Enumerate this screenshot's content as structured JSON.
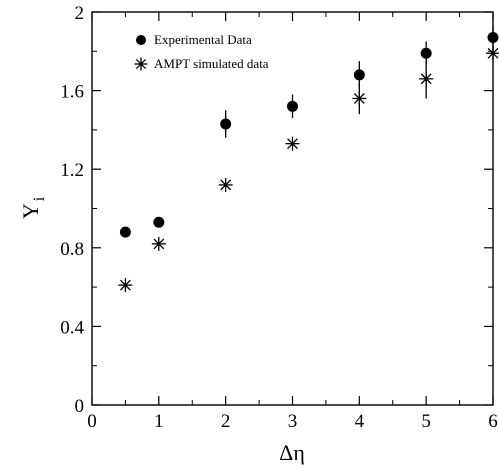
{
  "chart_data": {
    "type": "scatter",
    "xlabel": "Δη",
    "ylabel": "Y",
    "ylabel_subscript": "i",
    "xlim": [
      0,
      6
    ],
    "ylim": [
      0,
      2
    ],
    "xticks": [
      "0",
      "1",
      "2",
      "3",
      "4",
      "5",
      "6"
    ],
    "yticks": [
      "0",
      "0.4",
      "0.8",
      "1.2",
      "1.6",
      "2"
    ],
    "grid": false,
    "legend_position": "top-left",
    "series": [
      {
        "name": "Experimental Data",
        "marker": "filled-circle",
        "points": [
          {
            "x": 0.5,
            "y": 0.88,
            "err": 0.0
          },
          {
            "x": 1.0,
            "y": 0.93,
            "err": 0.02
          },
          {
            "x": 2.0,
            "y": 1.43,
            "err": 0.07
          },
          {
            "x": 3.0,
            "y": 1.52,
            "err": 0.06
          },
          {
            "x": 4.0,
            "y": 1.68,
            "err": 0.07
          },
          {
            "x": 5.0,
            "y": 1.79,
            "err": 0.06
          },
          {
            "x": 6.0,
            "y": 1.87,
            "err": 0.06
          }
        ]
      },
      {
        "name": "AMPT simulated data",
        "marker": "asterisk",
        "points": [
          {
            "x": 0.5,
            "y": 0.61,
            "err": 0.0
          },
          {
            "x": 1.0,
            "y": 0.82,
            "err": 0.0
          },
          {
            "x": 2.0,
            "y": 1.12,
            "err": 0.0
          },
          {
            "x": 3.0,
            "y": 1.33,
            "err": 0.0
          },
          {
            "x": 4.0,
            "y": 1.56,
            "err": 0.08
          },
          {
            "x": 5.0,
            "y": 1.66,
            "err": 0.1
          },
          {
            "x": 6.0,
            "y": 1.79,
            "err": 0.0
          }
        ]
      }
    ]
  }
}
